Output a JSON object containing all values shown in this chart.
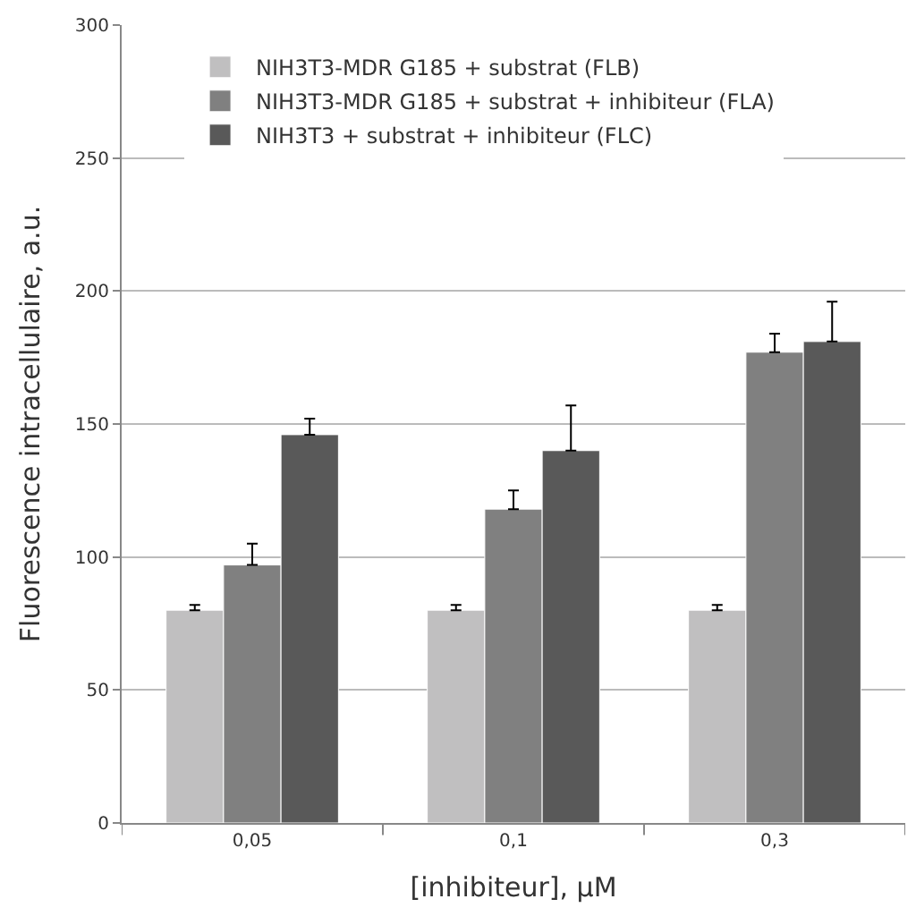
{
  "chart_data": {
    "type": "bar",
    "xlabel": "[inhibiteur], µM",
    "ylabel": "Fluorescence intracellulaire, a.u.",
    "categories": [
      "0,05",
      "0,1",
      "0,3"
    ],
    "series": [
      {
        "name": "NIH3T3-MDR G185 + substrat (FLB)",
        "color": "#c0bfc0",
        "values": [
          80,
          80,
          80
        ],
        "errors": [
          [
            80,
            82
          ],
          [
            80,
            82
          ],
          [
            80,
            82
          ]
        ]
      },
      {
        "name": "NIH3T3-MDR G185 + substrat + inhibiteur (FLA)",
        "color": "#808080",
        "values": [
          97,
          118,
          177
        ],
        "errors": [
          [
            97,
            105
          ],
          [
            118,
            125
          ],
          [
            177,
            184
          ]
        ]
      },
      {
        "name": "NIH3T3 + substrat + inhibiteur (FLC)",
        "color": "#595959",
        "values": [
          146,
          140,
          181
        ],
        "errors": [
          [
            146,
            152
          ],
          [
            140,
            157
          ],
          [
            181,
            196
          ]
        ]
      }
    ],
    "ylim": [
      0,
      300
    ],
    "yticks": [
      0,
      50,
      100,
      150,
      200,
      250,
      300
    ],
    "grid": "y",
    "legend": "top left"
  }
}
